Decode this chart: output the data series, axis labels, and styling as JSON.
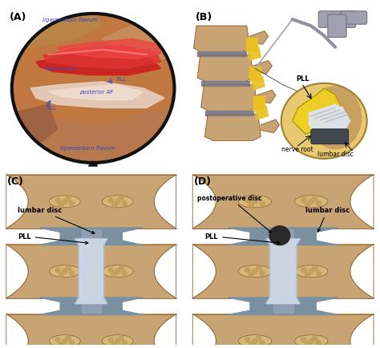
{
  "figure_width": 4.74,
  "figure_height": 4.35,
  "dpi": 100,
  "background_color": "#ffffff",
  "panel_positions": {
    "A": [
      0.01,
      0.51,
      0.47,
      0.47
    ],
    "B": [
      0.5,
      0.51,
      0.49,
      0.47
    ],
    "C": [
      0.01,
      0.01,
      0.46,
      0.5
    ],
    "D": [
      0.5,
      0.01,
      0.49,
      0.5
    ]
  },
  "panel_label_fontsize": 9,
  "panel_label_color": "#000000",
  "spine_color": "#c8a474",
  "spine_edge": "#8a6030",
  "disc_color": "#7a8fa0",
  "lig_color": "#ccd8e8",
  "lig_edge": "#9aaabf"
}
